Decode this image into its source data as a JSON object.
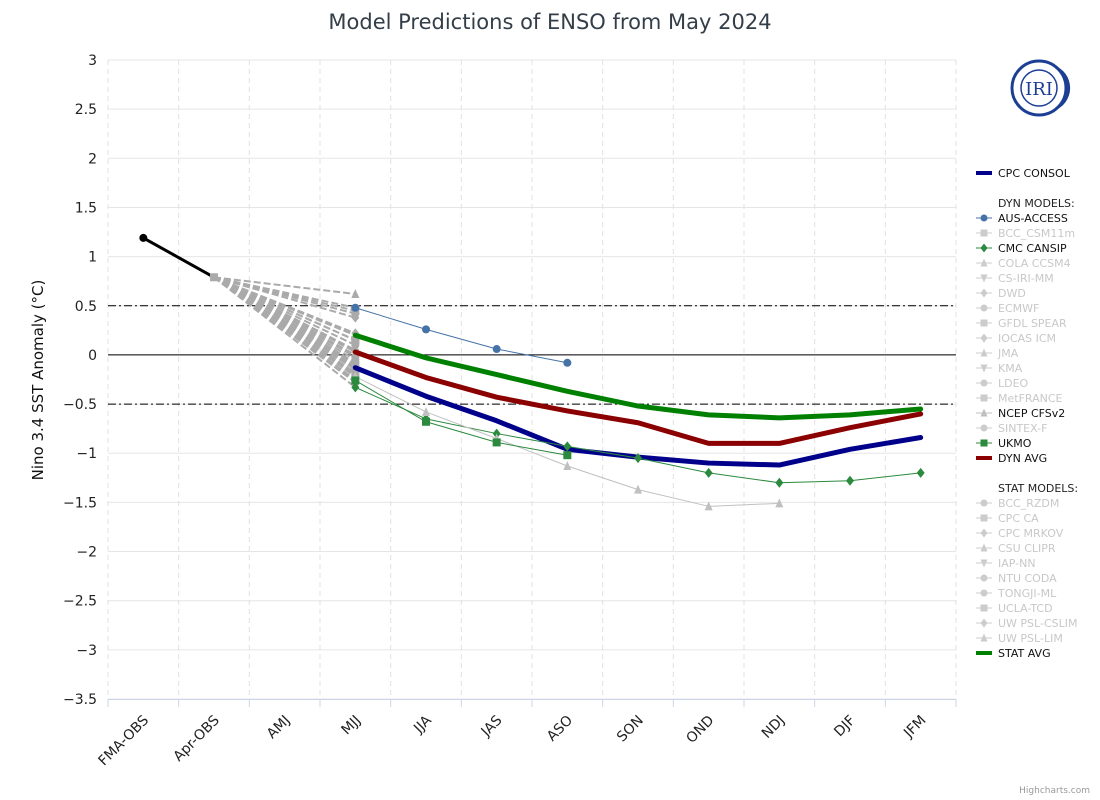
{
  "chart_data": {
    "type": "line",
    "title": "Model Predictions of ENSO from May 2024",
    "xlabel": "",
    "ylabel": "Nino 3.4 SST Anomaly (°C)",
    "categories": [
      "FMA-OBS",
      "Apr-OBS",
      "AMJ",
      "MJJ",
      "JJA",
      "JAS",
      "ASO",
      "SON",
      "OND",
      "NDJ",
      "DJF",
      "JFM"
    ],
    "ylim": [
      -3.5,
      3
    ],
    "yticks": [
      "3",
      "2.5",
      "2",
      "1.5",
      "1",
      "0.5",
      "0",
      "−0.5",
      "−1",
      "−1.5",
      "−2",
      "−2.5",
      "−3",
      "−3.5"
    ],
    "ytick_values": [
      3,
      2.5,
      2,
      1.5,
      1,
      0.5,
      0,
      -0.5,
      -1,
      -1.5,
      -2,
      -2.5,
      -3,
      -3.5
    ],
    "reference_lines": [
      {
        "value": 0.5,
        "style": "dashdot"
      },
      {
        "value": 0,
        "style": "solid"
      },
      {
        "value": -0.5,
        "style": "dashdot"
      }
    ],
    "observed": {
      "name": "OBS",
      "color": "#000000",
      "values": [
        1.19,
        0.79
      ]
    },
    "series": [
      {
        "name": "CPC CONSOL",
        "group": "main",
        "color": "#00008b",
        "marker": "none",
        "width": "thick",
        "active": true,
        "values": [
          null,
          null,
          null,
          -0.13,
          -0.42,
          -0.67,
          -0.96,
          -1.04,
          -1.1,
          -1.12,
          -0.96,
          -0.84
        ]
      },
      {
        "name": "AUS-ACCESS",
        "group": "dyn",
        "color": "#4572a7",
        "marker": "circle",
        "active": true,
        "values": [
          null,
          null,
          null,
          0.48,
          0.26,
          0.06,
          -0.08,
          null,
          null,
          null,
          null,
          null
        ]
      },
      {
        "name": "BCC_CSM11m",
        "group": "dyn",
        "color": "#cccccc",
        "marker": "square",
        "active": false,
        "values": [
          null,
          null,
          null,
          0.45,
          null,
          null,
          null,
          null,
          null,
          null,
          null,
          null
        ]
      },
      {
        "name": "CMC CANSIP",
        "group": "dyn",
        "color": "#2b8a3e",
        "marker": "diamond",
        "active": true,
        "values": [
          null,
          null,
          null,
          -0.33,
          -0.65,
          -0.8,
          -0.93,
          -1.05,
          -1.2,
          -1.3,
          -1.28,
          -1.2
        ]
      },
      {
        "name": "COLA CCSM4",
        "group": "dyn",
        "color": "#cccccc",
        "marker": "triangle",
        "active": false,
        "values": [
          null,
          null,
          null,
          0.62,
          null,
          null,
          null,
          null,
          null,
          null,
          null,
          null
        ]
      },
      {
        "name": "CS-IRI-MM",
        "group": "dyn",
        "color": "#cccccc",
        "marker": "triangle-down",
        "active": false,
        "values": [
          null,
          null,
          null,
          -0.12,
          null,
          null,
          null,
          null,
          null,
          null,
          null,
          null
        ]
      },
      {
        "name": "DWD",
        "group": "dyn",
        "color": "#cccccc",
        "marker": "diamond",
        "active": false,
        "values": [
          null,
          null,
          null,
          0.38,
          null,
          null,
          null,
          null,
          null,
          null,
          null,
          null
        ]
      },
      {
        "name": "ECMWF",
        "group": "dyn",
        "color": "#cccccc",
        "marker": "circle",
        "active": false,
        "values": [
          null,
          null,
          null,
          0.42,
          null,
          null,
          null,
          null,
          null,
          null,
          null,
          null
        ]
      },
      {
        "name": "GFDL SPEAR",
        "group": "dyn",
        "color": "#cccccc",
        "marker": "square",
        "active": false,
        "values": [
          null,
          null,
          null,
          0.15,
          null,
          null,
          null,
          null,
          null,
          null,
          null,
          null
        ]
      },
      {
        "name": "IOCAS ICM",
        "group": "dyn",
        "color": "#cccccc",
        "marker": "diamond",
        "active": false,
        "values": [
          null,
          null,
          null,
          0.22,
          null,
          null,
          null,
          null,
          null,
          null,
          null,
          null
        ]
      },
      {
        "name": "JMA",
        "group": "dyn",
        "color": "#cccccc",
        "marker": "triangle",
        "active": false,
        "values": [
          null,
          null,
          null,
          0.2,
          null,
          null,
          null,
          null,
          null,
          null,
          null,
          null
        ]
      },
      {
        "name": "KMA",
        "group": "dyn",
        "color": "#cccccc",
        "marker": "triangle-down",
        "active": false,
        "values": [
          null,
          null,
          null,
          0.0,
          null,
          null,
          null,
          null,
          null,
          null,
          null,
          null
        ]
      },
      {
        "name": "LDEO",
        "group": "dyn",
        "color": "#cccccc",
        "marker": "circle",
        "active": false,
        "values": [
          null,
          null,
          null,
          -0.05,
          null,
          null,
          null,
          null,
          null,
          null,
          null,
          null
        ]
      },
      {
        "name": "MetFRANCE",
        "group": "dyn",
        "color": "#cccccc",
        "marker": "square",
        "active": false,
        "values": [
          null,
          null,
          null,
          0.15,
          null,
          null,
          null,
          null,
          null,
          null,
          null,
          null
        ]
      },
      {
        "name": "NCEP CFSv2",
        "group": "dyn",
        "color": "#c0c0c0",
        "marker": "triangle",
        "active": true,
        "values": [
          null,
          null,
          null,
          -0.22,
          -0.58,
          -0.85,
          -1.13,
          -1.37,
          -1.54,
          -1.51,
          null,
          null
        ]
      },
      {
        "name": "SINTEX-F",
        "group": "dyn",
        "color": "#cccccc",
        "marker": "circle",
        "active": false,
        "values": [
          null,
          null,
          null,
          -0.02,
          null,
          null,
          null,
          null,
          null,
          null,
          null,
          null
        ]
      },
      {
        "name": "UKMO",
        "group": "dyn",
        "color": "#2b8a3e",
        "marker": "square",
        "active": true,
        "values": [
          null,
          null,
          null,
          -0.26,
          -0.68,
          -0.89,
          -1.02,
          null,
          null,
          null,
          null,
          null
        ]
      },
      {
        "name": "DYN AVG",
        "group": "dyn",
        "color": "#8b0000",
        "marker": "none",
        "width": "thick",
        "active": true,
        "values": [
          null,
          null,
          null,
          0.03,
          -0.23,
          -0.43,
          -0.57,
          -0.69,
          -0.9,
          -0.9,
          -0.74,
          -0.6
        ]
      },
      {
        "name": "BCC_RZDM",
        "group": "stat",
        "color": "#cccccc",
        "marker": "circle",
        "active": false,
        "values": [
          null,
          null,
          null,
          -0.15,
          null,
          null,
          null,
          null,
          null,
          null,
          null,
          null
        ]
      },
      {
        "name": "CPC CA",
        "group": "stat",
        "color": "#cccccc",
        "marker": "square",
        "active": false,
        "values": [
          null,
          null,
          null,
          -0.18,
          null,
          null,
          null,
          null,
          null,
          null,
          null,
          null
        ]
      },
      {
        "name": "CPC MRKOV",
        "group": "stat",
        "color": "#cccccc",
        "marker": "diamond",
        "active": false,
        "values": [
          null,
          null,
          null,
          -0.08,
          null,
          null,
          null,
          null,
          null,
          null,
          null,
          null
        ]
      },
      {
        "name": "CSU CLIPR",
        "group": "stat",
        "color": "#cccccc",
        "marker": "triangle",
        "active": false,
        "values": [
          null,
          null,
          null,
          -0.2,
          null,
          null,
          null,
          null,
          null,
          null,
          null,
          null
        ]
      },
      {
        "name": "IAP-NN",
        "group": "stat",
        "color": "#cccccc",
        "marker": "triangle-down",
        "active": false,
        "values": [
          null,
          null,
          null,
          -0.25,
          null,
          null,
          null,
          null,
          null,
          null,
          null,
          null
        ]
      },
      {
        "name": "NTU CODA",
        "group": "stat",
        "color": "#cccccc",
        "marker": "circle",
        "active": false,
        "values": [
          null,
          null,
          null,
          -0.28,
          null,
          null,
          null,
          null,
          null,
          null,
          null,
          null
        ]
      },
      {
        "name": "TONGJI-ML",
        "group": "stat",
        "color": "#cccccc",
        "marker": "circle",
        "active": false,
        "values": [
          null,
          null,
          null,
          0.1,
          null,
          null,
          null,
          null,
          null,
          null,
          null,
          null
        ]
      },
      {
        "name": "UCLA-TCD",
        "group": "stat",
        "color": "#cccccc",
        "marker": "square",
        "active": false,
        "values": [
          null,
          null,
          null,
          -0.1,
          null,
          null,
          null,
          null,
          null,
          null,
          null,
          null
        ]
      },
      {
        "name": "UW PSL-CSLIM",
        "group": "stat",
        "color": "#cccccc",
        "marker": "diamond",
        "active": false,
        "values": [
          null,
          null,
          null,
          0.05,
          null,
          null,
          null,
          null,
          null,
          null,
          null,
          null
        ]
      },
      {
        "name": "UW PSL-LIM",
        "group": "stat",
        "color": "#cccccc",
        "marker": "triangle",
        "active": false,
        "values": [
          null,
          null,
          null,
          -0.15,
          null,
          null,
          null,
          null,
          null,
          null,
          null,
          null
        ]
      },
      {
        "name": "STAT AVG",
        "group": "stat",
        "color": "#008000",
        "marker": "none",
        "width": "thick",
        "active": true,
        "values": [
          null,
          null,
          null,
          0.2,
          -0.03,
          -0.2,
          -0.37,
          -0.52,
          -0.61,
          -0.64,
          -0.61,
          -0.55
        ]
      }
    ],
    "legend": {
      "placement": "right",
      "group_headers": {
        "dyn": "DYN MODELS:",
        "stat": "STAT MODELS:"
      },
      "order": [
        "CPC CONSOL",
        "|dyn",
        "AUS-ACCESS",
        "BCC_CSM11m",
        "CMC CANSIP",
        "COLA CCSM4",
        "CS-IRI-MM",
        "DWD",
        "ECMWF",
        "GFDL SPEAR",
        "IOCAS ICM",
        "JMA",
        "KMA",
        "LDEO",
        "MetFRANCE",
        "NCEP CFSv2",
        "SINTEX-F",
        "UKMO",
        "DYN AVG",
        "|stat",
        "BCC_RZDM",
        "CPC CA",
        "CPC MRKOV",
        "CSU CLIPR",
        "IAP-NN",
        "NTU CODA",
        "TONGJI-ML",
        "UCLA-TCD",
        "UW PSL-CSLIM",
        "UW PSL-LIM",
        "STAT AVG"
      ]
    },
    "grid": true
  },
  "logo": {
    "text": "IRI",
    "color": "#1c3f94"
  },
  "credits": "Highcharts.com"
}
